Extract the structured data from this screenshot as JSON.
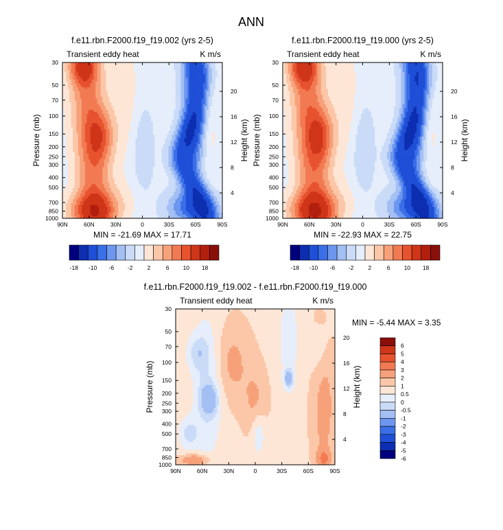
{
  "figure": {
    "title": "ANN"
  },
  "chart_data": [
    {
      "type": "heatmap",
      "id": "p1",
      "title": "f.e11.rbn.F2000.f19_f19.002 (yrs 2-5)",
      "left_label": "Transient eddy heat",
      "right_label": "K m/s",
      "xlabel": "",
      "ylabel": "Pressure (mb)",
      "ylabel_right": "Height (km)",
      "x_ticks": [
        "90N",
        "60N",
        "30N",
        "0",
        "30S",
        "60S",
        "90S"
      ],
      "y_ticks": [
        "30",
        "50",
        "70",
        "100",
        "150",
        "200",
        "250",
        "300",
        "400",
        "500",
        "700",
        "850",
        "1000"
      ],
      "y_ticks_right": [
        "20",
        "16",
        "12",
        "8",
        "4"
      ],
      "min_label": "MIN = -21.69",
      "max_label": "MAX = 17.71",
      "value_range": [
        -21.69,
        17.71
      ],
      "color_levels": [
        "-18",
        "-10",
        "-6",
        "-2",
        "2",
        "6",
        "10",
        "18"
      ]
    },
    {
      "type": "heatmap",
      "id": "p2",
      "title": "f.e11.rbn.F2000.f19_f19.000 (yrs 2-5)",
      "left_label": "Transient eddy heat",
      "right_label": "K m/s",
      "xlabel": "",
      "ylabel": "Pressure (mb)",
      "ylabel_right": "Height (km)",
      "x_ticks": [
        "90N",
        "60N",
        "30N",
        "0",
        "30S",
        "60S",
        "90S"
      ],
      "y_ticks": [
        "30",
        "50",
        "70",
        "100",
        "150",
        "200",
        "250",
        "300",
        "400",
        "500",
        "700",
        "850",
        "1000"
      ],
      "y_ticks_right": [
        "20",
        "16",
        "12",
        "8",
        "4"
      ],
      "min_label": "MIN = -22.93",
      "max_label": "MAX = 22.75",
      "value_range": [
        -22.93,
        22.75
      ],
      "color_levels": [
        "-18",
        "-10",
        "-6",
        "-2",
        "2",
        "6",
        "10",
        "18"
      ]
    },
    {
      "type": "heatmap",
      "id": "p3",
      "title": "f.e11.rbn.F2000.f19_f19.002 - f.e11.rbn.F2000.f19_f19.000",
      "left_label": "Transient eddy heat",
      "right_label": "K m/s",
      "xlabel": "",
      "ylabel": "Pressure (mb)",
      "ylabel_right": "Height (km)",
      "x_ticks": [
        "90N",
        "60N",
        "30N",
        "0",
        "30S",
        "60S",
        "90S"
      ],
      "y_ticks": [
        "30",
        "50",
        "70",
        "100",
        "150",
        "200",
        "250",
        "300",
        "400",
        "500",
        "700",
        "850",
        "1000"
      ],
      "y_ticks_right": [
        "20",
        "16",
        "12",
        "8",
        "4"
      ],
      "min_label": "MIN = -5.44",
      "max_label": "MAX =  3.35",
      "value_range": [
        -5.44,
        3.35
      ],
      "color_levels": [
        "6",
        "5",
        "4",
        "3",
        "2",
        "1",
        "0.5",
        "0",
        "-0.5",
        "-1",
        "-2",
        "-3",
        "-4",
        "-5",
        "-6"
      ]
    }
  ],
  "colors": {
    "scale_main": [
      "#00007f",
      "#0d2eb0",
      "#1f4fd6",
      "#3a6fe8",
      "#6d97ef",
      "#a3bff3",
      "#cadbf8",
      "#e6eefb",
      "#fde6d6",
      "#fbc7a8",
      "#f7a17a",
      "#f27a52",
      "#e7522f",
      "#cf3519",
      "#b21f0e",
      "#8a0f0a"
    ],
    "scale_diff": [
      "#00007f",
      "#0d2eb0",
      "#1f4fd6",
      "#3a6fe8",
      "#6d97ef",
      "#a3bff3",
      "#cadbf8",
      "#e6eefb",
      "#fde6d6",
      "#fbc7a8",
      "#f7a17a",
      "#f27a52",
      "#e7522f",
      "#cf3519",
      "#8a0f0a"
    ]
  }
}
